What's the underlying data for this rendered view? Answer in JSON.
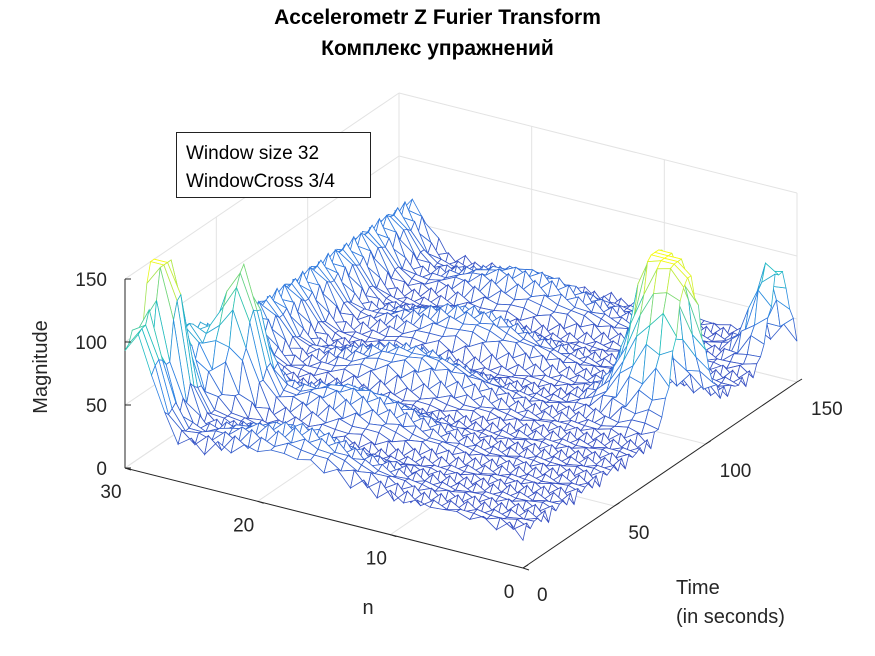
{
  "chart_data": {
    "type": "surface",
    "title": "Accelerometr Z Furier Transform",
    "subtitle": "Комплекс упражнений",
    "annotation": [
      "Window size 32",
      "WindowCross 3/4"
    ],
    "xlabel": [
      "Time",
      "(in seconds)"
    ],
    "ylabel": "n",
    "zlabel": "Magnitude",
    "xlim": [
      0,
      150
    ],
    "ylim": [
      0,
      30
    ],
    "zlim": [
      0,
      150
    ],
    "xticks": [
      0,
      50,
      100,
      150
    ],
    "yticks": [
      0,
      10,
      20,
      30
    ],
    "zticks": [
      0,
      50,
      100,
      150
    ],
    "grid": true,
    "colormap": "parula",
    "colors": {
      "low": "#3e26a8",
      "mid": "#1fbfc1",
      "high": "#f9fb0e"
    },
    "peaks": [
      {
        "time": 0,
        "n": 28,
        "magnitude": 80
      },
      {
        "time": 15,
        "n": 30,
        "magnitude": 150
      },
      {
        "time": 35,
        "n": 25,
        "magnitude": 150
      },
      {
        "time": 90,
        "n": 0,
        "magnitude": 150
      },
      {
        "time": 95,
        "n": 2,
        "magnitude": 90
      },
      {
        "time": 140,
        "n": 0,
        "magnitude": 100
      }
    ]
  }
}
